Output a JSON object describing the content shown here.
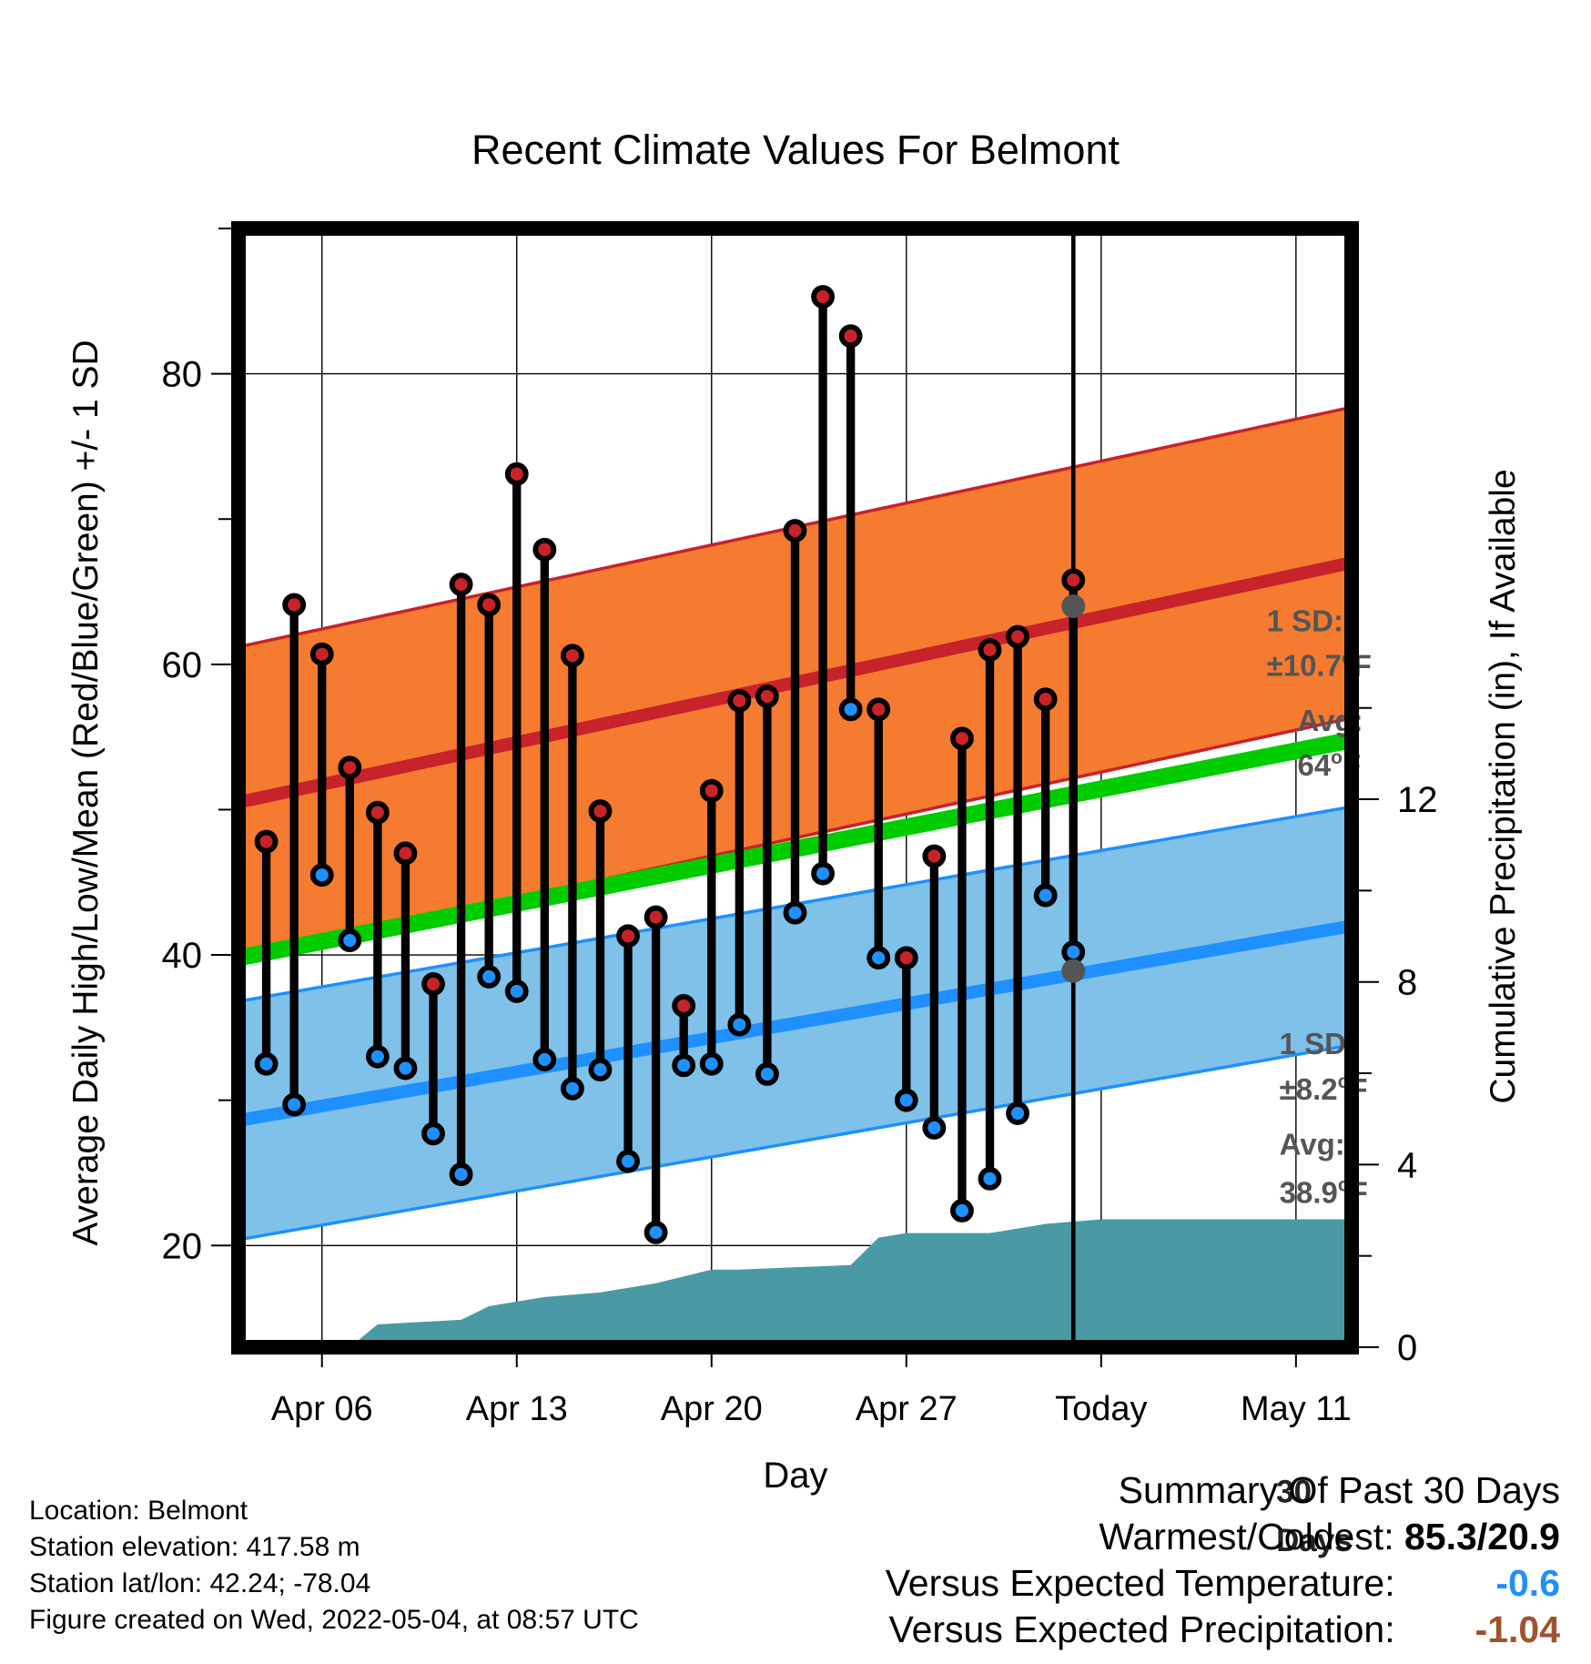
{
  "chart_data": {
    "type": "line",
    "title": "Recent Climate Values For Belmont",
    "xlabel": "Day",
    "ylabel_left": "Average Daily High/Low/Mean (Red/Blue/Green) +/- 1 SD",
    "ylabel_right": "Cumulative Precipitation (in), If Available",
    "x_ticks": [
      "Apr 06",
      "Apr 13",
      "Apr 20",
      "Apr 27",
      "Today",
      "May 11"
    ],
    "xlim": [
      "2022-04-03",
      "2022-05-13"
    ],
    "ylim_left": [
      13,
      90
    ],
    "ylim_right": [
      0,
      24.5
    ],
    "y_ticks_left": [
      20,
      40,
      60,
      80
    ],
    "y_ticks_right": [
      0,
      4,
      8,
      12
    ],
    "grid": true,
    "dates": [
      "2022-04-04",
      "2022-04-05",
      "2022-04-06",
      "2022-04-07",
      "2022-04-08",
      "2022-04-09",
      "2022-04-10",
      "2022-04-11",
      "2022-04-12",
      "2022-04-13",
      "2022-04-14",
      "2022-04-15",
      "2022-04-16",
      "2022-04-17",
      "2022-04-18",
      "2022-04-19",
      "2022-04-20",
      "2022-04-21",
      "2022-04-22",
      "2022-04-23",
      "2022-04-24",
      "2022-04-25",
      "2022-04-26",
      "2022-04-27",
      "2022-04-28",
      "2022-04-29",
      "2022-04-30",
      "2022-05-01",
      "2022-05-02",
      "2022-05-03"
    ],
    "series": [
      {
        "name": "High",
        "color": "#c8222a",
        "values": [
          47.8,
          64.1,
          60.7,
          52.9,
          49.8,
          47.0,
          38.0,
          65.5,
          64.1,
          73.1,
          67.9,
          60.6,
          49.9,
          41.3,
          42.6,
          36.5,
          51.3,
          57.5,
          57.8,
          69.2,
          85.3,
          82.6,
          56.9,
          39.8,
          46.8,
          54.9,
          61.0,
          61.9,
          57.6,
          65.8
        ]
      },
      {
        "name": "Low",
        "color": "#1e90ff",
        "values": [
          32.5,
          29.7,
          45.5,
          41.0,
          33.0,
          32.2,
          27.7,
          24.9,
          38.5,
          37.5,
          32.8,
          30.8,
          32.1,
          25.8,
          20.9,
          32.4,
          32.5,
          35.2,
          31.8,
          42.9,
          45.6,
          56.9,
          39.8,
          30.0,
          28.1,
          22.4,
          24.6,
          29.1,
          44.1,
          40.2
        ]
      }
    ],
    "normal_high": {
      "start": 50.5,
      "end": 67.0,
      "sd": 10.7
    },
    "normal_low": {
      "start": 28.6,
      "end": 42.0,
      "sd": 8.2
    },
    "normal_mean": {
      "start": 39.8,
      "end": 54.8
    },
    "precip": {
      "dates": [
        "2022-04-03",
        "2022-04-07",
        "2022-04-08",
        "2022-04-11",
        "2022-04-12",
        "2022-04-14",
        "2022-04-16",
        "2022-04-18",
        "2022-04-20",
        "2022-04-21",
        "2022-04-25",
        "2022-04-26",
        "2022-04-27",
        "2022-04-30",
        "2022-05-01",
        "2022-05-02",
        "2022-05-04",
        "2022-05-13"
      ],
      "values": [
        0,
        0,
        0.5,
        0.6,
        0.9,
        1.1,
        1.2,
        1.4,
        1.7,
        1.7,
        1.8,
        2.4,
        2.5,
        2.5,
        2.6,
        2.7,
        2.8,
        2.8
      ],
      "color": "#4a9aa5"
    },
    "annotations": {
      "high_sd_line1": "1 SD:",
      "high_sd_line2": "±10.7",
      "high_avg_line1": "Avg:",
      "high_avg_line2": "64",
      "low_sd_line1": "1 SD:",
      "low_sd_line2": "±8.2",
      "low_avg_line1": "Avg:",
      "low_avg_line2": "38.9",
      "unit": "F",
      "degree": "o",
      "period_line1": "30",
      "period_line2": "Days"
    },
    "today_avg_high": 64.0,
    "today_avg_low": 38.9,
    "colors": {
      "high_band": "#f47b30",
      "low_band": "#7fc1e8",
      "mean_line": "#00cc00",
      "high_line": "#c8222a",
      "low_line": "#1e90ff",
      "annotation": "#555555"
    }
  },
  "footer": {
    "location": "Location: Belmont",
    "elevation": "Station elevation: 417.58 m",
    "latlon": "Station lat/lon: 42.24; -78.04",
    "created": "Figure created on Wed, 2022-05-04, at 08:57 UTC"
  },
  "summary": {
    "title": "Summary Of Past 30 Days",
    "warm_cold_label": "Warmest/Coldest:",
    "warm_cold_value": "85.3/20.9",
    "temp_label": "Versus Expected Temperature:",
    "temp_value": "-0.6",
    "temp_color": "#1e90ff",
    "precip_label": "Versus Expected Precipitation:",
    "precip_value": "-1.04",
    "precip_color": "#a0522d"
  }
}
